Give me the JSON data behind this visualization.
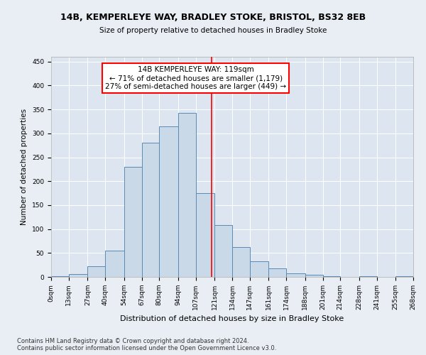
{
  "title": "14B, KEMPERLEYE WAY, BRADLEY STOKE, BRISTOL, BS32 8EB",
  "subtitle": "Size of property relative to detached houses in Bradley Stoke",
  "xlabel": "Distribution of detached houses by size in Bradley Stoke",
  "ylabel": "Number of detached properties",
  "bar_edges": [
    0,
    13,
    27,
    40,
    54,
    67,
    80,
    94,
    107,
    121,
    134,
    147,
    161,
    174,
    188,
    201,
    214,
    228,
    241,
    255,
    268
  ],
  "bar_heights": [
    2,
    6,
    22,
    55,
    230,
    280,
    315,
    343,
    175,
    108,
    63,
    32,
    18,
    7,
    4,
    2,
    0,
    2,
    0,
    1
  ],
  "bar_color": "#c9d9e8",
  "bar_edge_color": "#5a8ab5",
  "property_line_x": 119,
  "annotation_text": "14B KEMPERLEYE WAY: 119sqm\n← 71% of detached houses are smaller (1,179)\n27% of semi-detached houses are larger (449) →",
  "annotation_box_color": "white",
  "annotation_box_edge_color": "red",
  "vline_color": "red",
  "ylim": [
    0,
    460
  ],
  "background_color": "#e8eef4",
  "plot_background_color": "#dde6f0",
  "footnote": "Contains HM Land Registry data © Crown copyright and database right 2024.\nContains public sector information licensed under the Open Government Licence v3.0.",
  "tick_labels": [
    "0sqm",
    "13sqm",
    "27sqm",
    "40sqm",
    "54sqm",
    "67sqm",
    "80sqm",
    "94sqm",
    "107sqm",
    "121sqm",
    "134sqm",
    "147sqm",
    "161sqm",
    "174sqm",
    "188sqm",
    "201sqm",
    "214sqm",
    "228sqm",
    "241sqm",
    "255sqm",
    "268sqm"
  ],
  "yticks": [
    0,
    50,
    100,
    150,
    200,
    250,
    300,
    350,
    400,
    450
  ],
  "title_fontsize": 9,
  "subtitle_fontsize": 7.5,
  "xlabel_fontsize": 8,
  "ylabel_fontsize": 7.5,
  "tick_fontsize": 6.5,
  "annotation_fontsize": 7.5,
  "footnote_fontsize": 6
}
